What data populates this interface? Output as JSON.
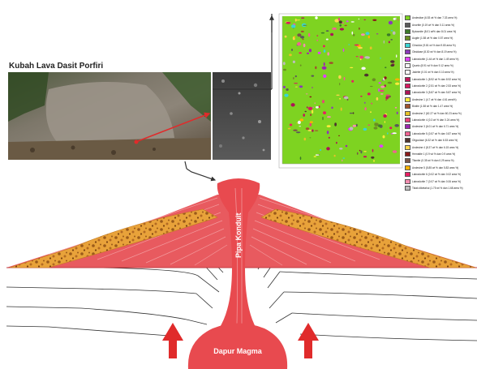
{
  "photo": {
    "title": "Kubah Lava Dasit Porfiri"
  },
  "volcano": {
    "conduit_label": "Pipa Konduit",
    "chamber_label": "Dapur Magma"
  },
  "colors": {
    "magma": "#e84a4f",
    "magma_light": "#f0969a",
    "dome": "#e85a5f",
    "debris": "#e8a23a",
    "debris_dots": "#9a5a1a",
    "map_background": "#7ed321",
    "arrow": "#e02b2b",
    "connector": "#333333"
  },
  "legend": {
    "items": [
      {
        "label": "Andesitoe (6.53 wt % dan 7.33 area %)",
        "color": "#7ed321"
      },
      {
        "label": "Anortite (0.19 wt % dan 0.11 area %)",
        "color": "#5a5a5a"
      },
      {
        "label": "Bytownite (8.01 wt% dan 8.01 area %)",
        "color": "#3c7a2a"
      },
      {
        "label": "Augite (1.58 wt % dan 0.57 area %)",
        "color": "#6b8e23"
      },
      {
        "label": "Clinoklor (9.81 wt % dan 9.80 area %)",
        "color": "#3ad4d4"
      },
      {
        "label": "Oksidase (8.30 wt % dan 8.19 area %)",
        "color": "#8a3ab9"
      },
      {
        "label": "Labradorite (1.44 wt % dan 1.49 area %)",
        "color": "#e040fb"
      },
      {
        "label": "Quartz (8.91 wt % dan 9.12 area %)",
        "color": "#f5f5f5"
      },
      {
        "label": "Jadeite (0.01 wt % dan 0.10 area %)",
        "color": "#ffffff"
      },
      {
        "label": "Labradorite 1 (8.92 wt % dan 8.92 area %)",
        "color": "#c2185b"
      },
      {
        "label": "Labradorite 2 (2.51 wt % dan 2.53 area %)",
        "color": "#d81b60"
      },
      {
        "label": "Labradorite 3 (5.87 wt % dan 5.87 area %)",
        "color": "#ad1457"
      },
      {
        "label": "Andesine 1 (4.7 wt % dan 4.61 area%)",
        "color": "#ffeb3b"
      },
      {
        "label": "Biotite (1.58 wt % dan 1.47 area %)",
        "color": "#a0522d"
      },
      {
        "label": "Andesine 2 (62.27 wt % dan 60.23 area %)",
        "color": "#e6c229"
      },
      {
        "label": "Labradorite 4 (0.3 wt % dan 0.24 area %)",
        "color": "#ec407a"
      },
      {
        "label": "Andesine 3 (6.01 wt % dan 6.71 area %)",
        "color": "#9c27b0"
      },
      {
        "label": "Labradorite 5 (0.57 wt % dan 0.87 area %)",
        "color": "#f06292"
      },
      {
        "label": "Oligoclase (6.32 wt % dan 6.53 area %)",
        "color": "#4e342e"
      },
      {
        "label": "Andesine 4 (8.37 wt % dan 6.15 area %)",
        "color": "#ffd54f"
      },
      {
        "label": "Hematite 1 (0.9 wt % dan 0.9 area %)",
        "color": "#8b1a1a"
      },
      {
        "label": "Titanite (0.35 wt % dan 0.29 area %)",
        "color": "#795548"
      },
      {
        "label": "Andesine 5 (5.85 wt % dan 5.83 area %)",
        "color": "#ffb300"
      },
      {
        "label": "Labradorite 6 (0.02 wt % dan 0.02 area %)",
        "color": "#e91e63"
      },
      {
        "label": "Labradorite 7 (0.07 wt % dan 0.06 area %)",
        "color": "#f48fb1"
      },
      {
        "label": "Tidak diketahui (1.75 wt % dan 1.68 area %)",
        "color": "#bdbdbd"
      }
    ]
  }
}
